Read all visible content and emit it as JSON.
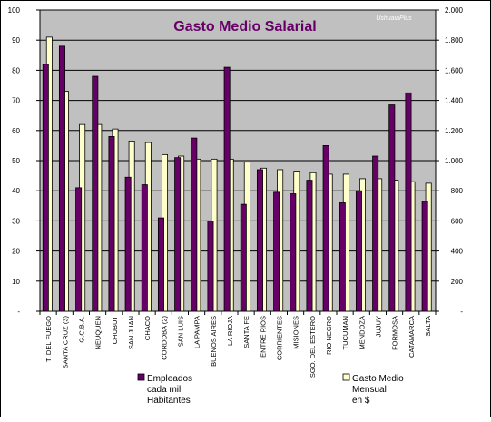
{
  "chart_data": {
    "type": "bar",
    "title": "Gasto Medio Salarial",
    "watermark": "UshuaiaPlus",
    "categories": [
      "T. DEL FUEGO",
      "SANTA CRUZ (3)",
      "G.C.B.A.",
      "NEUQUEN",
      "CHUBUT",
      "SAN JUAN",
      "CHACO",
      "CORDOBA (2)",
      "SAN LUIS",
      "LA PAMPA",
      "BUENOS AIRES",
      "LA RIOJA",
      "SANTA FE",
      "ENTRE RIOS",
      "CORRIENTES",
      "MISIONES",
      "SGO. DEL ESTERO",
      "RIO NEGRO",
      "TUCUMAN",
      "MENDOZA",
      "JUJUY",
      "FORMOSA",
      "CATAMARCA",
      "SALTA"
    ],
    "series": [
      {
        "name": "Empleados cada mil Habitantes",
        "legend_lines": [
          "Empleados",
          "cada mil",
          "Habitantes"
        ],
        "axis": "left",
        "color": "#660066",
        "values": [
          82,
          88,
          41,
          78,
          58,
          44.5,
          42,
          31,
          51,
          57.5,
          30,
          81,
          35.5,
          47,
          39.5,
          39,
          43.5,
          55,
          36,
          40,
          51.5,
          68.5,
          72.5,
          36.5
        ]
      },
      {
        "name": "Gasto Medio Mensual en $",
        "legend_lines": [
          "Gasto Medio",
          "Mensual",
          "en $"
        ],
        "axis": "right",
        "color": "#ffffcc",
        "values": [
          1820,
          1460,
          1240,
          1240,
          1210,
          1130,
          1120,
          1040,
          1030,
          1010,
          1010,
          1010,
          990,
          950,
          940,
          930,
          920,
          910,
          910,
          880,
          880,
          870,
          860,
          850
        ]
      }
    ],
    "y_left": {
      "min": 0,
      "max": 100,
      "ticks": [
        0,
        10,
        20,
        30,
        40,
        50,
        60,
        70,
        80,
        90,
        100
      ],
      "bottom_label": "-"
    },
    "y_right": {
      "min": 0,
      "max": 2000,
      "ticks": [
        0,
        200,
        400,
        600,
        800,
        1000,
        1200,
        1400,
        1600,
        1800,
        2000
      ],
      "tick_labels": [
        "-",
        "200",
        "400",
        "600",
        "800",
        "1.000",
        "1.200",
        "1.400",
        "1.600",
        "1.800",
        "2.000"
      ]
    },
    "grid": true,
    "legend_position": "bottom",
    "colors": {
      "plot_background": "#c0c0c0",
      "gridline": "#000000",
      "title": "#660066",
      "watermark": "#ffffff"
    }
  }
}
